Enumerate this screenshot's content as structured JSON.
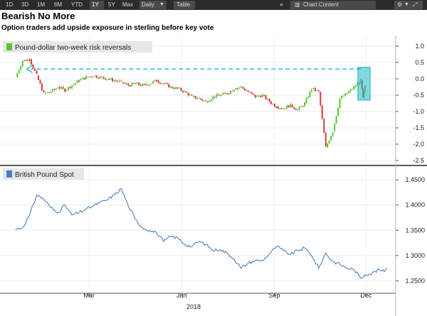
{
  "toolbar": {
    "periods": [
      "1D",
      "3D",
      "1M",
      "6M",
      "YTD",
      "1Y",
      "5Y",
      "Max"
    ],
    "active_period": "1Y",
    "frequency": "Daily",
    "table_label": "Table",
    "chart_content_label": "Chart Content"
  },
  "headline": "Bearish No More",
  "subtitle": "Option traders add upside exposure in sterling before key vote",
  "colors": {
    "up": "#55c82b",
    "down": "#d63a3a",
    "line": "#4a7fc0",
    "annotation": "#1fb8c9"
  },
  "chart_data": [
    {
      "type": "line",
      "series": [
        {
          "name": "Pound-dollar two-week risk reversals",
          "style": "candlestick",
          "color": "#55c82b"
        }
      ],
      "ylim": [
        -2.5,
        1.0
      ],
      "yticks": [
        "1.0",
        "0.5",
        "0.0",
        "-0.5",
        "-1.0",
        "-1.5",
        "-2.0",
        "-2.5"
      ],
      "ytick_values": [
        1.0,
        0.5,
        0.0,
        -0.5,
        -1.0,
        -1.5,
        -2.0,
        -2.5
      ],
      "points": [
        [
          "2018-01-01",
          0.05
        ],
        [
          "2018-01-08",
          0.55
        ],
        [
          "2018-01-15",
          0.6
        ],
        [
          "2018-01-22",
          0.1
        ],
        [
          "2018-01-29",
          -0.45
        ],
        [
          "2018-02-05",
          -0.4
        ],
        [
          "2018-02-12",
          -0.25
        ],
        [
          "2018-02-19",
          -0.35
        ],
        [
          "2018-02-26",
          -0.2
        ],
        [
          "2018-03-05",
          -0.05
        ],
        [
          "2018-03-12",
          0.05
        ],
        [
          "2018-03-19",
          0.1
        ],
        [
          "2018-03-26",
          0.05
        ],
        [
          "2018-04-02",
          0.0
        ],
        [
          "2018-04-09",
          -0.05
        ],
        [
          "2018-04-16",
          -0.1
        ],
        [
          "2018-04-23",
          -0.2
        ],
        [
          "2018-04-30",
          -0.15
        ],
        [
          "2018-05-07",
          -0.2
        ],
        [
          "2018-05-14",
          -0.15
        ],
        [
          "2018-05-21",
          -0.05
        ],
        [
          "2018-05-28",
          -0.15
        ],
        [
          "2018-06-04",
          -0.25
        ],
        [
          "2018-06-11",
          -0.3
        ],
        [
          "2018-06-18",
          -0.4
        ],
        [
          "2018-06-25",
          -0.55
        ],
        [
          "2018-07-02",
          -0.6
        ],
        [
          "2018-07-09",
          -0.7
        ],
        [
          "2018-07-16",
          -0.55
        ],
        [
          "2018-07-23",
          -0.5
        ],
        [
          "2018-07-30",
          -0.45
        ],
        [
          "2018-08-06",
          -0.3
        ],
        [
          "2018-08-13",
          -0.25
        ],
        [
          "2018-08-20",
          -0.4
        ],
        [
          "2018-08-27",
          -0.55
        ],
        [
          "2018-09-03",
          -0.5
        ],
        [
          "2018-09-10",
          -0.7
        ],
        [
          "2018-09-17",
          -0.85
        ],
        [
          "2018-09-24",
          -0.9
        ],
        [
          "2018-10-01",
          -0.8
        ],
        [
          "2018-10-08",
          -0.95
        ],
        [
          "2018-10-15",
          -0.75
        ],
        [
          "2018-10-22",
          -0.3
        ],
        [
          "2018-10-29",
          -0.4
        ],
        [
          "2018-11-05",
          -2.1
        ],
        [
          "2018-11-12",
          -1.6
        ],
        [
          "2018-11-19",
          -0.6
        ],
        [
          "2018-11-26",
          -0.45
        ],
        [
          "2018-12-03",
          -0.25
        ],
        [
          "2018-12-10",
          -0.05
        ],
        [
          "2018-12-12",
          -0.6
        ],
        [
          "2018-12-14",
          -0.25
        ]
      ],
      "annotation": {
        "type": "dashed-arrow",
        "from_date": "2018-12-10",
        "to_date": "2018-01-12",
        "y": 0.3
      },
      "highlight_box": {
        "from_date": "2018-12-07",
        "to_date": "2018-12-19",
        "y_range": [
          -0.65,
          0.35
        ]
      }
    },
    {
      "type": "line",
      "series": [
        {
          "name": "British Pound Spot",
          "color": "#4a7fc0"
        }
      ],
      "ylim": [
        1.245,
        1.46
      ],
      "yticks": [
        "1.4500",
        "1.4000",
        "1.3500",
        "1.3000",
        "1.2500"
      ],
      "ytick_values": [
        1.45,
        1.4,
        1.35,
        1.3,
        1.25
      ],
      "points": [
        [
          "2018-01-01",
          1.352
        ],
        [
          "2018-01-08",
          1.355
        ],
        [
          "2018-01-15",
          1.38
        ],
        [
          "2018-01-22",
          1.42
        ],
        [
          "2018-01-29",
          1.412
        ],
        [
          "2018-02-05",
          1.395
        ],
        [
          "2018-02-12",
          1.385
        ],
        [
          "2018-02-19",
          1.4
        ],
        [
          "2018-02-26",
          1.38
        ],
        [
          "2018-03-05",
          1.385
        ],
        [
          "2018-03-12",
          1.392
        ],
        [
          "2018-03-19",
          1.398
        ],
        [
          "2018-03-26",
          1.405
        ],
        [
          "2018-04-02",
          1.41
        ],
        [
          "2018-04-09",
          1.42
        ],
        [
          "2018-04-16",
          1.432
        ],
        [
          "2018-04-23",
          1.398
        ],
        [
          "2018-04-30",
          1.372
        ],
        [
          "2018-05-07",
          1.355
        ],
        [
          "2018-05-14",
          1.35
        ],
        [
          "2018-05-21",
          1.345
        ],
        [
          "2018-05-28",
          1.328
        ],
        [
          "2018-06-04",
          1.338
        ],
        [
          "2018-06-11",
          1.335
        ],
        [
          "2018-06-18",
          1.322
        ],
        [
          "2018-06-25",
          1.318
        ],
        [
          "2018-07-02",
          1.328
        ],
        [
          "2018-07-09",
          1.322
        ],
        [
          "2018-07-16",
          1.31
        ],
        [
          "2018-07-23",
          1.312
        ],
        [
          "2018-07-30",
          1.305
        ],
        [
          "2018-08-06",
          1.293
        ],
        [
          "2018-08-13",
          1.275
        ],
        [
          "2018-08-20",
          1.285
        ],
        [
          "2018-08-27",
          1.29
        ],
        [
          "2018-09-03",
          1.29
        ],
        [
          "2018-09-10",
          1.303
        ],
        [
          "2018-09-17",
          1.318
        ],
        [
          "2018-09-24",
          1.31
        ],
        [
          "2018-10-01",
          1.302
        ],
        [
          "2018-10-08",
          1.31
        ],
        [
          "2018-10-15",
          1.315
        ],
        [
          "2018-10-22",
          1.3
        ],
        [
          "2018-10-29",
          1.275
        ],
        [
          "2018-11-05",
          1.305
        ],
        [
          "2018-11-12",
          1.288
        ],
        [
          "2018-11-19",
          1.283
        ],
        [
          "2018-11-26",
          1.275
        ],
        [
          "2018-12-03",
          1.272
        ],
        [
          "2018-12-10",
          1.255
        ],
        [
          "2018-12-14",
          1.262
        ],
        [
          "2018-12-21",
          1.265
        ],
        [
          "2018-12-28",
          1.272
        ],
        [
          "2019-01-02",
          1.268
        ],
        [
          "2019-01-04",
          1.276
        ]
      ]
    }
  ],
  "x_axis": {
    "labels": [
      "Mar",
      "Jun",
      "Sep",
      "Dec"
    ],
    "label_dates": [
      "2018-03-15",
      "2018-06-15",
      "2018-09-15",
      "2018-12-15"
    ],
    "year_label": "2018",
    "domain": [
      "2017-12-18",
      "2019-01-12"
    ]
  }
}
